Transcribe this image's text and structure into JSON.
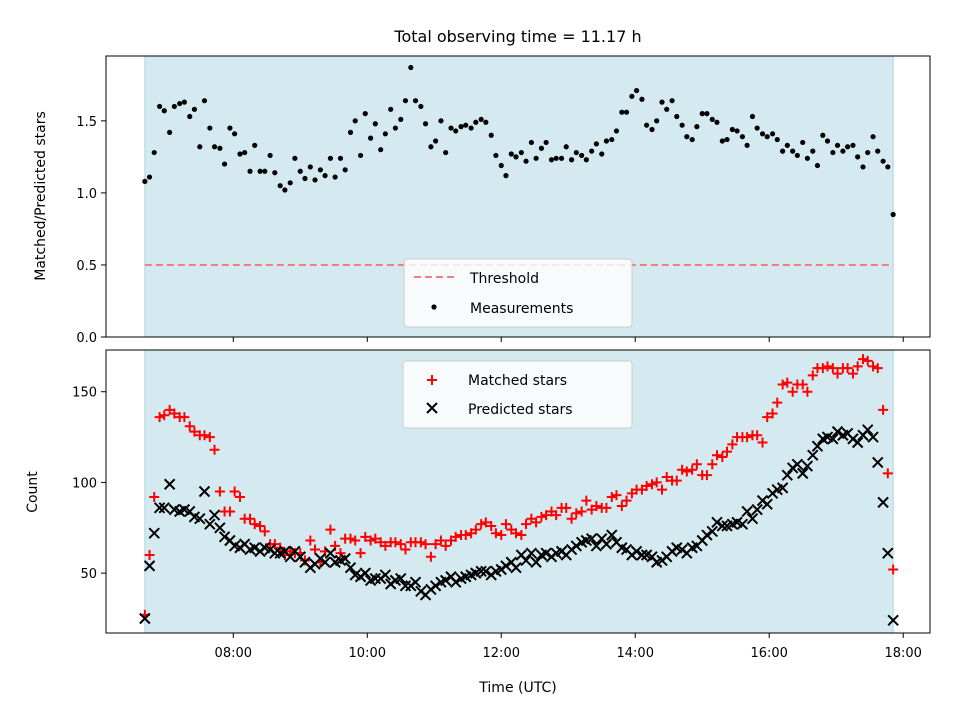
{
  "chart_data": [
    {
      "type": "scatter",
      "title": "Total observing time = 11.17 h",
      "xlabel": "",
      "ylabel": "Matched/Predicted stars",
      "ylim": [
        0,
        1.95
      ],
      "xlim_hours": [
        6.1,
        18.4
      ],
      "yticks": [
        0.0,
        0.5,
        1.0,
        1.5
      ],
      "ytick_labels": [
        "0.0",
        "0.5",
        "1.0",
        "1.5"
      ],
      "shaded_span_hours": [
        6.68,
        17.85
      ],
      "shade_color": "#d4eaf0",
      "threshold": {
        "value": 0.5,
        "label": "Threshold",
        "color": "#f08080"
      },
      "legend": {
        "placement": "lower-center",
        "entries": [
          "Threshold",
          "Measurements"
        ]
      },
      "series": [
        {
          "name": "Measurements",
          "marker": "dot",
          "color": "#000000",
          "x": [
            6.68,
            6.75,
            6.82,
            6.9,
            6.97,
            7.05,
            7.12,
            7.2,
            7.27,
            7.35,
            7.42,
            7.5,
            7.57,
            7.65,
            7.72,
            7.8,
            7.87,
            7.95,
            8.02,
            8.1,
            8.17,
            8.25,
            8.32,
            8.4,
            8.47,
            8.55,
            8.62,
            8.7,
            8.77,
            8.85,
            8.92,
            9.0,
            9.07,
            9.15,
            9.22,
            9.3,
            9.37,
            9.45,
            9.52,
            9.6,
            9.67,
            9.75,
            9.82,
            9.9,
            9.97,
            10.05,
            10.12,
            10.2,
            10.27,
            10.35,
            10.42,
            10.5,
            10.57,
            10.65,
            10.72,
            10.8,
            10.87,
            10.95,
            11.02,
            11.1,
            11.17,
            11.25,
            11.32,
            11.4,
            11.47,
            11.55,
            11.62,
            11.7,
            11.77,
            11.85,
            11.92,
            12.0,
            12.07,
            12.15,
            12.22,
            12.3,
            12.37,
            12.45,
            12.52,
            12.6,
            12.67,
            12.75,
            12.82,
            12.9,
            12.97,
            13.05,
            13.12,
            13.2,
            13.27,
            13.35,
            13.42,
            13.5,
            13.57,
            13.65,
            13.72,
            13.8,
            13.87,
            13.95,
            14.02,
            14.1,
            14.17,
            14.25,
            14.32,
            14.4,
            14.47,
            14.55,
            14.62,
            14.7,
            14.77,
            14.85,
            14.92,
            15.0,
            15.07,
            15.15,
            15.22,
            15.3,
            15.37,
            15.45,
            15.52,
            15.6,
            15.67,
            15.75,
            15.82,
            15.9,
            15.97,
            16.05,
            16.12,
            16.2,
            16.27,
            16.35,
            16.42,
            16.5,
            16.57,
            16.65,
            16.72,
            16.8,
            16.87,
            16.95,
            17.02,
            17.1,
            17.17,
            17.25,
            17.32,
            17.4,
            17.47,
            17.55,
            17.62,
            17.7,
            17.77,
            17.85
          ],
          "y": [
            1.08,
            1.11,
            1.28,
            1.6,
            1.57,
            1.42,
            1.6,
            1.62,
            1.63,
            1.53,
            1.58,
            1.32,
            1.64,
            1.45,
            1.32,
            1.31,
            1.2,
            1.45,
            1.41,
            1.27,
            1.28,
            1.15,
            1.33,
            1.15,
            1.15,
            1.26,
            1.14,
            1.05,
            1.02,
            1.07,
            1.24,
            1.15,
            1.1,
            1.18,
            1.09,
            1.16,
            1.12,
            1.24,
            1.11,
            1.24,
            1.16,
            1.42,
            1.5,
            1.26,
            1.55,
            1.38,
            1.48,
            1.3,
            1.41,
            1.58,
            1.45,
            1.51,
            1.64,
            1.87,
            1.64,
            1.6,
            1.48,
            1.32,
            1.36,
            1.5,
            1.28,
            1.45,
            1.43,
            1.46,
            1.47,
            1.45,
            1.49,
            1.51,
            1.49,
            1.4,
            1.26,
            1.19,
            1.12,
            1.27,
            1.25,
            1.28,
            1.22,
            1.35,
            1.24,
            1.31,
            1.35,
            1.23,
            1.24,
            1.24,
            1.32,
            1.23,
            1.28,
            1.26,
            1.23,
            1.29,
            1.34,
            1.27,
            1.36,
            1.37,
            1.43,
            1.56,
            1.56,
            1.67,
            1.71,
            1.65,
            1.47,
            1.44,
            1.5,
            1.63,
            1.58,
            1.64,
            1.53,
            1.47,
            1.39,
            1.37,
            1.46,
            1.55,
            1.55,
            1.51,
            1.49,
            1.36,
            1.37,
            1.44,
            1.43,
            1.39,
            1.33,
            1.53,
            1.45,
            1.41,
            1.39,
            1.41,
            1.37,
            1.29,
            1.33,
            1.29,
            1.26,
            1.35,
            1.24,
            1.29,
            1.19,
            1.4,
            1.36,
            1.28,
            1.33,
            1.29,
            1.32,
            1.33,
            1.25,
            1.18,
            1.28,
            1.39,
            1.29,
            1.22,
            1.18,
            0.85
          ]
        }
      ]
    },
    {
      "type": "scatter",
      "title": "",
      "xlabel": "Time (UTC)",
      "ylabel": "Count",
      "ylim": [
        17,
        173
      ],
      "xlim_hours": [
        6.1,
        18.4
      ],
      "yticks": [
        50,
        100,
        150
      ],
      "ytick_labels": [
        "50",
        "100",
        "150"
      ],
      "xticks_hours": [
        8,
        10,
        12,
        14,
        16,
        18
      ],
      "xtick_labels": [
        "08:00",
        "10:00",
        "12:00",
        "14:00",
        "16:00",
        "18:00"
      ],
      "shaded_span_hours": [
        6.68,
        17.85
      ],
      "shade_color": "#d4eaf0",
      "legend": {
        "placement": "upper-center",
        "entries": [
          "Matched stars",
          "Predicted stars"
        ]
      },
      "series": [
        {
          "name": "Matched stars",
          "marker": "plus",
          "color": "#ff0000",
          "x": [
            6.68,
            6.75,
            6.82,
            6.9,
            6.97,
            7.05,
            7.12,
            7.2,
            7.27,
            7.35,
            7.42,
            7.5,
            7.57,
            7.65,
            7.72,
            7.8,
            7.87,
            7.95,
            8.02,
            8.1,
            8.17,
            8.25,
            8.32,
            8.4,
            8.47,
            8.55,
            8.62,
            8.7,
            8.77,
            8.85,
            8.92,
            9.0,
            9.07,
            9.15,
            9.22,
            9.3,
            9.37,
            9.45,
            9.52,
            9.6,
            9.67,
            9.75,
            9.82,
            9.9,
            9.97,
            10.05,
            10.12,
            10.2,
            10.27,
            10.35,
            10.42,
            10.5,
            10.57,
            10.65,
            10.72,
            10.8,
            10.87,
            10.95,
            11.02,
            11.1,
            11.17,
            11.25,
            11.32,
            11.4,
            11.47,
            11.55,
            11.62,
            11.7,
            11.77,
            11.85,
            11.92,
            12.0,
            12.07,
            12.15,
            12.22,
            12.3,
            12.37,
            12.45,
            12.52,
            12.6,
            12.67,
            12.75,
            12.82,
            12.9,
            12.97,
            13.05,
            13.12,
            13.2,
            13.27,
            13.35,
            13.42,
            13.5,
            13.57,
            13.65,
            13.72,
            13.8,
            13.87,
            13.95,
            14.02,
            14.1,
            14.17,
            14.25,
            14.32,
            14.4,
            14.47,
            14.55,
            14.62,
            14.7,
            14.77,
            14.85,
            14.92,
            15.0,
            15.07,
            15.15,
            15.22,
            15.3,
            15.37,
            15.45,
            15.52,
            15.6,
            15.67,
            15.75,
            15.82,
            15.9,
            15.97,
            16.05,
            16.12,
            16.2,
            16.27,
            16.35,
            16.42,
            16.5,
            16.57,
            16.65,
            16.72,
            16.8,
            16.87,
            16.95,
            17.02,
            17.1,
            17.17,
            17.25,
            17.32,
            17.4,
            17.47,
            17.55,
            17.62,
            17.7,
            17.77,
            17.85
          ],
          "y": [
            27,
            60,
            92,
            136,
            137,
            140,
            138,
            136,
            136,
            131,
            128,
            126,
            126,
            125,
            118,
            95,
            84,
            84,
            95,
            92,
            80,
            80,
            77,
            76,
            73,
            66,
            66,
            64,
            60,
            62,
            61,
            61,
            57,
            68,
            63,
            56,
            62,
            74,
            65,
            61,
            69,
            69,
            68,
            61,
            70,
            68,
            69,
            67,
            65,
            67,
            67,
            66,
            63,
            67,
            67,
            67,
            66,
            59,
            66,
            68,
            65,
            68,
            70,
            71,
            71,
            72,
            74,
            77,
            78,
            76,
            72,
            71,
            77,
            74,
            72,
            71,
            77,
            80,
            78,
            81,
            82,
            84,
            82,
            86,
            86,
            80,
            83,
            84,
            90,
            85,
            87,
            86,
            86,
            92,
            93,
            87,
            90,
            94,
            96,
            96,
            98,
            99,
            100,
            96,
            103,
            101,
            101,
            107,
            106,
            107,
            110,
            104,
            104,
            110,
            115,
            114,
            117,
            121,
            125,
            125,
            125,
            126,
            126,
            122,
            136,
            138,
            144,
            154,
            155,
            150,
            154,
            154,
            150,
            159,
            163,
            163,
            164,
            163,
            160,
            163,
            163,
            160,
            164,
            168,
            167,
            164,
            163,
            140,
            105,
            52
          ]
        },
        {
          "name": "Predicted stars",
          "marker": "x",
          "color": "#000000",
          "x": [
            6.68,
            6.75,
            6.82,
            6.9,
            6.97,
            7.05,
            7.12,
            7.2,
            7.27,
            7.35,
            7.42,
            7.5,
            7.57,
            7.65,
            7.72,
            7.8,
            7.87,
            7.95,
            8.02,
            8.1,
            8.17,
            8.25,
            8.32,
            8.4,
            8.47,
            8.55,
            8.62,
            8.7,
            8.77,
            8.85,
            8.92,
            9.0,
            9.07,
            9.15,
            9.22,
            9.3,
            9.37,
            9.45,
            9.52,
            9.6,
            9.67,
            9.75,
            9.82,
            9.9,
            9.97,
            10.05,
            10.12,
            10.2,
            10.27,
            10.35,
            10.42,
            10.5,
            10.57,
            10.65,
            10.72,
            10.8,
            10.87,
            10.95,
            11.02,
            11.1,
            11.17,
            11.25,
            11.32,
            11.4,
            11.47,
            11.55,
            11.62,
            11.7,
            11.77,
            11.85,
            11.92,
            12.0,
            12.07,
            12.15,
            12.22,
            12.3,
            12.37,
            12.45,
            12.52,
            12.6,
            12.67,
            12.75,
            12.82,
            12.9,
            12.97,
            13.05,
            13.12,
            13.2,
            13.27,
            13.35,
            13.42,
            13.5,
            13.57,
            13.65,
            13.72,
            13.8,
            13.87,
            13.95,
            14.02,
            14.1,
            14.17,
            14.25,
            14.32,
            14.4,
            14.47,
            14.55,
            14.62,
            14.7,
            14.77,
            14.85,
            14.92,
            15.0,
            15.07,
            15.15,
            15.22,
            15.3,
            15.37,
            15.45,
            15.52,
            15.6,
            15.67,
            15.75,
            15.82,
            15.9,
            15.97,
            16.05,
            16.12,
            16.2,
            16.27,
            16.35,
            16.42,
            16.5,
            16.57,
            16.65,
            16.72,
            16.8,
            16.87,
            16.95,
            17.02,
            17.1,
            17.17,
            17.25,
            17.32,
            17.4,
            17.47,
            17.55,
            17.62,
            17.7,
            17.77,
            17.85
          ],
          "y": [
            25,
            54,
            72,
            86,
            86,
            99,
            85,
            84,
            85,
            84,
            81,
            80,
            95,
            77,
            82,
            75,
            70,
            68,
            65,
            64,
            66,
            63,
            64,
            62,
            64,
            63,
            61,
            61,
            62,
            59,
            62,
            59,
            56,
            53,
            55,
            58,
            56,
            61,
            56,
            57,
            58,
            53,
            49,
            48,
            50,
            46,
            47,
            47,
            49,
            44,
            46,
            47,
            43,
            43,
            45,
            40,
            38,
            41,
            43,
            45,
            46,
            48,
            45,
            47,
            48,
            49,
            50,
            51,
            51,
            49,
            51,
            52,
            54,
            56,
            53,
            60,
            57,
            61,
            56,
            60,
            61,
            59,
            61,
            62,
            60,
            63,
            65,
            67,
            68,
            69,
            65,
            69,
            66,
            71,
            67,
            64,
            63,
            60,
            62,
            60,
            60,
            59,
            56,
            57,
            59,
            62,
            64,
            63,
            61,
            64,
            65,
            68,
            71,
            73,
            78,
            76,
            76,
            77,
            78,
            77,
            84,
            80,
            85,
            90,
            88,
            94,
            96,
            97,
            104,
            108,
            110,
            105,
            109,
            115,
            120,
            124,
            125,
            124,
            128,
            126,
            127,
            124,
            122,
            126,
            129,
            125,
            111,
            89,
            61,
            24
          ]
        }
      ]
    }
  ]
}
